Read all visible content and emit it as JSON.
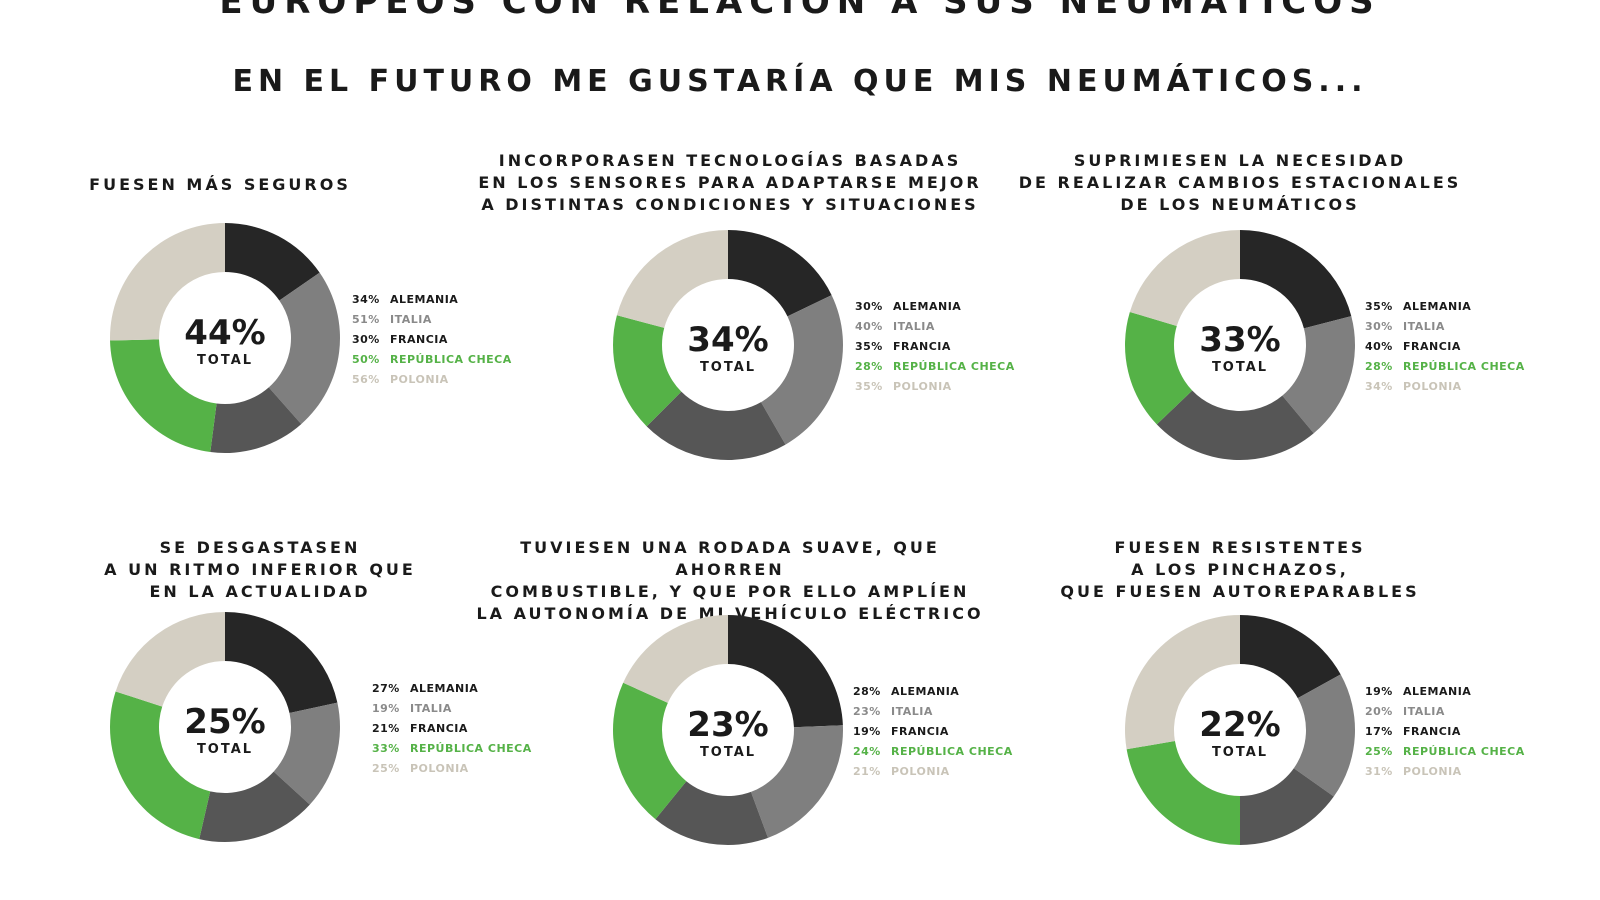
{
  "header": {
    "title": "EUROPEOS CON RELACIÓN A SUS NEUMÁTICOS",
    "subtitle": "EN EL FUTURO ME GUSTARÍA QUE MIS NEUMÁTICOS..."
  },
  "colors": {
    "alemania": "#262626",
    "italia": "#7f7f7f",
    "francia": "#565656",
    "republica_checa": "#55b247",
    "polonia": "#d4cfc3",
    "text": "#1a1a1a"
  },
  "chart_data": [
    {
      "type": "pie",
      "title": "FUESEN MÁS SEGUROS",
      "total_value": "44%",
      "total_label": "TOTAL",
      "categories": [
        "ALEMANIA",
        "ITALIA",
        "FRANCIA",
        "REPÚBLICA CHECA",
        "POLONIA"
      ],
      "values": [
        34,
        51,
        30,
        50,
        56
      ],
      "labels": [
        "34%",
        "51%",
        "30%",
        "50%",
        "56%"
      ]
    },
    {
      "type": "pie",
      "title": "INCORPORASEN TECNOLOGÍAS BASADAS\nEN LOS SENSORES PARA ADAPTARSE MEJOR\nA DISTINTAS CONDICIONES Y SITUACIONES",
      "total_value": "34%",
      "total_label": "TOTAL",
      "categories": [
        "ALEMANIA",
        "ITALIA",
        "FRANCIA",
        "REPÚBLICA CHECA",
        "POLONIA"
      ],
      "values": [
        30,
        40,
        35,
        28,
        35
      ],
      "labels": [
        "30%",
        "40%",
        "35%",
        "28%",
        "35%"
      ]
    },
    {
      "type": "pie",
      "title": "SUPRIMIESEN LA NECESIDAD\nDE REALIZAR CAMBIOS ESTACIONALES\nDE LOS NEUMÁTICOS",
      "total_value": "33%",
      "total_label": "TOTAL",
      "categories": [
        "ALEMANIA",
        "ITALIA",
        "FRANCIA",
        "REPÚBLICA CHECA",
        "POLONIA"
      ],
      "values": [
        35,
        30,
        40,
        28,
        34
      ],
      "labels": [
        "35%",
        "30%",
        "40%",
        "28%",
        "34%"
      ]
    },
    {
      "type": "pie",
      "title": "SE DESGASTASEN\nA UN RITMO INFERIOR QUE\nEN LA ACTUALIDAD",
      "total_value": "25%",
      "total_label": "TOTAL",
      "categories": [
        "ALEMANIA",
        "ITALIA",
        "FRANCIA",
        "REPÚBLICA CHECA",
        "POLONIA"
      ],
      "values": [
        27,
        19,
        21,
        33,
        25
      ],
      "labels": [
        "27%",
        "19%",
        "21%",
        "33%",
        "25%"
      ]
    },
    {
      "type": "pie",
      "title": "TUVIESEN UNA RODADA SUAVE, QUE AHORREN\nCOMBUSTIBLE, Y QUE POR ELLO AMPLÍEN\nLA AUTONOMÍA DE MI VEHÍCULO ELÉCTRICO",
      "total_value": "23%",
      "total_label": "TOTAL",
      "categories": [
        "ALEMANIA",
        "ITALIA",
        "FRANCIA",
        "REPÚBLICA CHECA",
        "POLONIA"
      ],
      "values": [
        28,
        23,
        19,
        24,
        21
      ],
      "labels": [
        "28%",
        "23%",
        "19%",
        "24%",
        "21%"
      ]
    },
    {
      "type": "pie",
      "title": "FUESEN RESISTENTES\nA LOS PINCHAZOS,\nQUE FUESEN AUTOREPARABLES",
      "total_value": "22%",
      "total_label": "TOTAL",
      "categories": [
        "ALEMANIA",
        "ITALIA",
        "FRANCIA",
        "REPÚBLICA CHECA",
        "POLONIA"
      ],
      "values": [
        19,
        20,
        17,
        25,
        31
      ],
      "labels": [
        "19%",
        "20%",
        "17%",
        "25%",
        "31%"
      ]
    }
  ]
}
